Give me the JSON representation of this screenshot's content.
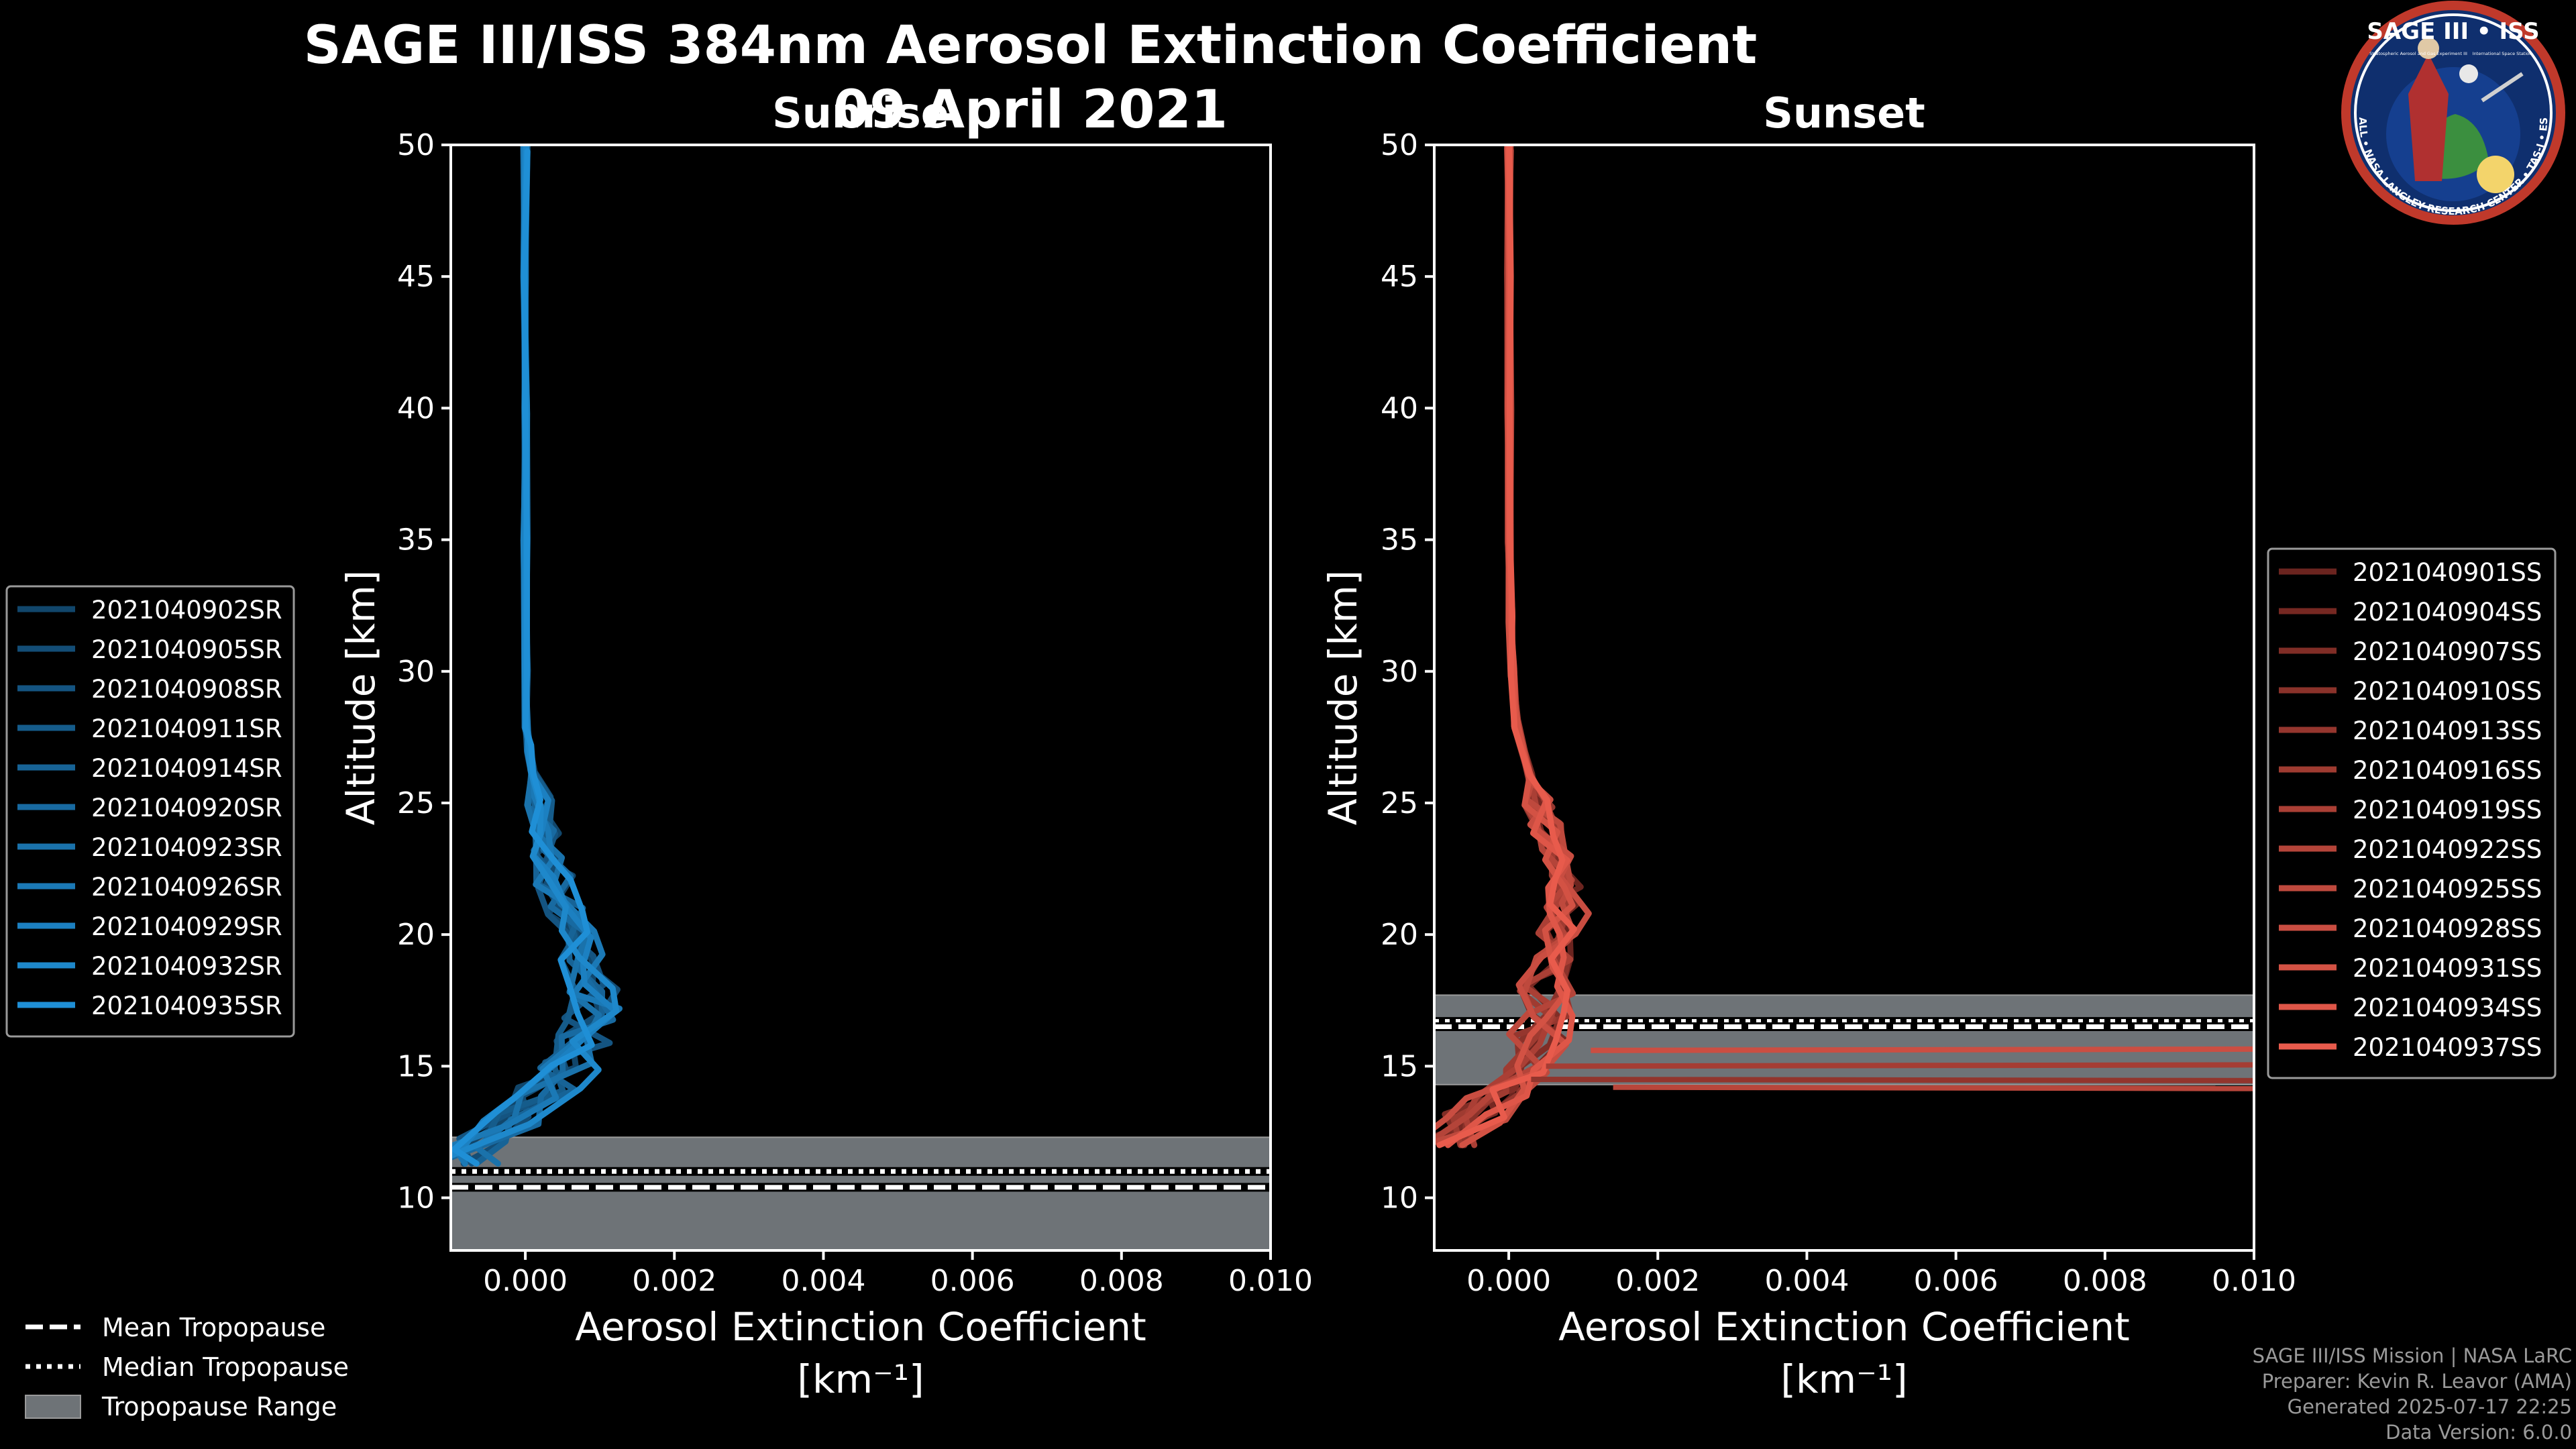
{
  "header": {
    "title": "SAGE III/ISS 384nm Aerosol Extinction Coefficient",
    "date": "09 April 2021"
  },
  "logo": {
    "top_text": "SAGE III • ISS",
    "ring_text": "BALL • NASA LANGLEY RESEARCH CENTER • TAS-I • ESA",
    "caption_left": "Stratospheric Aerosol and Gas Experiment III",
    "caption_right": "International Space Station"
  },
  "colors": {
    "sunrise": "#1f8fd6",
    "sunset": "#e85b4c",
    "tropo_band": "#6e7377",
    "axes": "#ffffff"
  },
  "legend_tropo": {
    "mean": "Mean Tropopause",
    "median": "Median Tropopause",
    "range": "Tropopause Range"
  },
  "credits": {
    "line1": "SAGE III/ISS Mission | NASA LaRC",
    "line2": "Preparer: Kevin R. Leavor (AMA)",
    "line3": "Generated 2025-07-17 22:25",
    "line4": "Data Version: 6.0.0"
  },
  "chart_data": [
    {
      "type": "line",
      "title": "Sunrise",
      "xlabel": "Aerosol Extinction Coefficient",
      "xunits": "[km⁻¹]",
      "ylabel": "Altitude [km]",
      "xlim": [
        -0.001,
        0.01
      ],
      "ylim": [
        8,
        50
      ],
      "xticks": [
        "0.000",
        "0.002",
        "0.004",
        "0.006",
        "0.008",
        "0.010"
      ],
      "xtick_values": [
        0,
        0.002,
        0.004,
        0.006,
        0.008,
        0.01
      ],
      "yticks": [
        10,
        15,
        20,
        25,
        30,
        35,
        40,
        45,
        50
      ],
      "tropopause": {
        "mean": 10.4,
        "median": 11.0,
        "range": [
          8,
          12.3
        ]
      },
      "series_names": [
        "2021040902SR",
        "2021040905SR",
        "2021040908SR",
        "2021040911SR",
        "2021040914SR",
        "2021040920SR",
        "2021040923SR",
        "2021040926SR",
        "2021040929SR",
        "2021040932SR",
        "2021040935SR"
      ],
      "profile": {
        "altitude": [
          11.3,
          12,
          13,
          14,
          15,
          16,
          17,
          18,
          19,
          20,
          21,
          22,
          23,
          24,
          25,
          26,
          27,
          28,
          30,
          35,
          40,
          45,
          50
        ],
        "extinction": [
          -0.0008,
          -0.0005,
          -0.0002,
          0.0003,
          0.0006,
          0.0008,
          0.0009,
          0.0009,
          0.0008,
          0.0007,
          0.0005,
          0.0004,
          0.0003,
          0.00025,
          0.0002,
          0.0001,
          5e-05,
          2e-05,
          1e-05,
          5e-06,
          3e-06,
          2e-06,
          1e-06
        ]
      }
    },
    {
      "type": "line",
      "title": "Sunset",
      "xlabel": "Aerosol Extinction Coefficient",
      "xunits": "[km⁻¹]",
      "ylabel": "Altitude [km]",
      "xlim": [
        -0.001,
        0.01
      ],
      "ylim": [
        8,
        50
      ],
      "xticks": [
        "0.000",
        "0.002",
        "0.004",
        "0.006",
        "0.008",
        "0.010"
      ],
      "xtick_values": [
        0,
        0.002,
        0.004,
        0.006,
        0.008,
        0.01
      ],
      "yticks": [
        10,
        15,
        20,
        25,
        30,
        35,
        40,
        45,
        50
      ],
      "tropopause": {
        "mean": 16.5,
        "median": 16.7,
        "range": [
          14.3,
          17.7
        ]
      },
      "series_names": [
        "2021040901SS",
        "2021040904SS",
        "2021040907SS",
        "2021040910SS",
        "2021040913SS",
        "2021040916SS",
        "2021040919SS",
        "2021040922SS",
        "2021040925SS",
        "2021040928SS",
        "2021040931SS",
        "2021040934SS",
        "2021040937SS"
      ],
      "profile": {
        "altitude": [
          12,
          13,
          14,
          15,
          16,
          17,
          18,
          19,
          20,
          21,
          22,
          23,
          24,
          25,
          26,
          28,
          30,
          32,
          35,
          40,
          45,
          50
        ],
        "extinction": [
          -0.0009,
          -0.0005,
          -0.0002,
          0.0002,
          0.0004,
          0.0005,
          0.0005,
          0.0006,
          0.0007,
          0.0008,
          0.0007,
          0.0006,
          0.0005,
          0.0004,
          0.0003,
          0.0001,
          5e-05,
          2e-05,
          1e-05,
          5e-06,
          2e-06,
          1e-06
        ]
      },
      "spikes": [
        {
          "altitude": 14.5,
          "from": 0.0003,
          "to": 0.01
        },
        {
          "altitude": 15.0,
          "from": 0.0005,
          "to": 0.01
        },
        {
          "altitude": 14.2,
          "from": 0.0014,
          "to": 0.01
        },
        {
          "altitude": 15.6,
          "from": 0.0011,
          "to": 0.01
        }
      ]
    }
  ]
}
